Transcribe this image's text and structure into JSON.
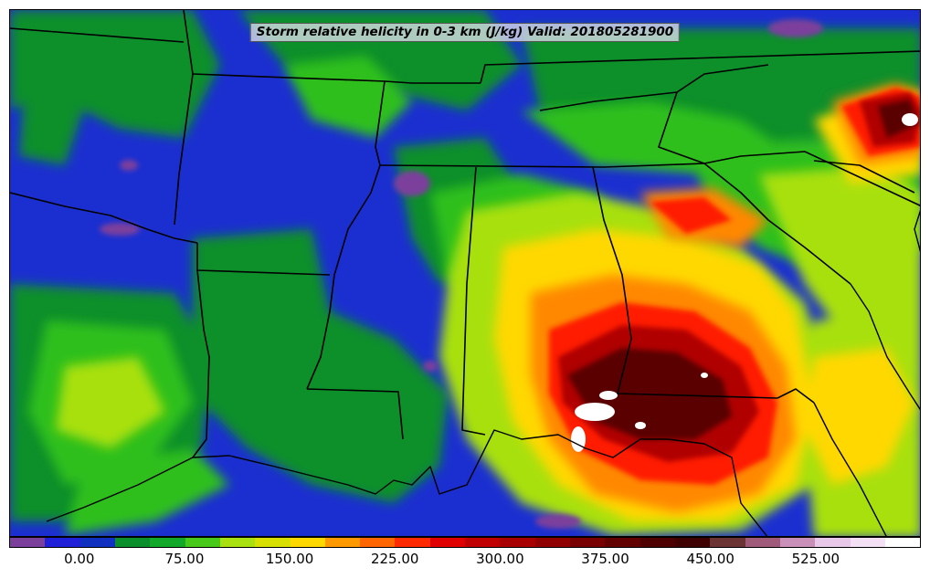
{
  "title": "Storm relative helicity in 0-3 km (J/kg) Valid: 201805281900",
  "colorbar": {
    "colors": [
      "#7b3f9c",
      "#2020d8",
      "#1030c0",
      "#0b8f2c",
      "#12a82a",
      "#48c818",
      "#a8e010",
      "#d8e000",
      "#ffd800",
      "#ff9900",
      "#ff6600",
      "#ff2a00",
      "#e00000",
      "#c00000",
      "#a80000",
      "#900000",
      "#780000",
      "#620000",
      "#4e0000",
      "#3e0000",
      "#6b3333",
      "#a05a7a",
      "#c890b8",
      "#e8c8e8",
      "#f4e0f4",
      "#ffffff"
    ],
    "ticks": [
      "0.00",
      "75.00",
      "150.00",
      "225.00",
      "300.00",
      "375.00",
      "450.00",
      "525.00"
    ]
  },
  "palette": {
    "purple": "#7b3f9c",
    "blue": "#1b2fd0",
    "darkgreen": "#0b8f2c",
    "green": "#2fbf1a",
    "lime": "#a8e010",
    "yellow": "#ffd800",
    "orange": "#ff8800",
    "red": "#ff1a00",
    "darkred": "#b00000",
    "maroon": "#5a0000",
    "white": "#ffffff"
  }
}
